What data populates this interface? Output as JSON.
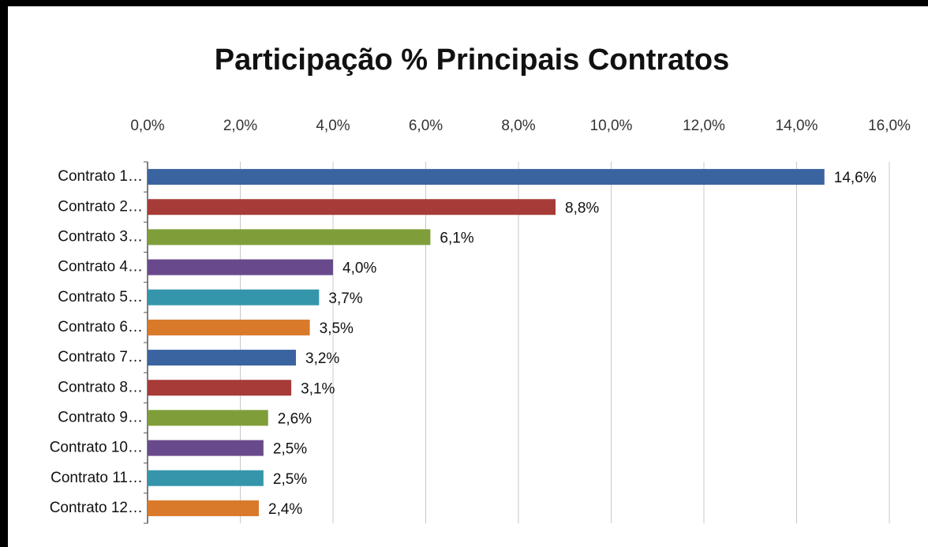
{
  "chart_data": {
    "type": "bar",
    "orientation": "horizontal",
    "title": "Participação % Principais Contratos",
    "categories": [
      "Contrato 1…",
      "Contrato 2…",
      "Contrato 3…",
      "Contrato 4…",
      "Contrato 5…",
      "Contrato 6…",
      "Contrato 7…",
      "Contrato 8…",
      "Contrato 9…",
      "Contrato 10…",
      "Contrato 11…",
      "Contrato 12…"
    ],
    "values": [
      14.6,
      8.8,
      6.1,
      4.0,
      3.7,
      3.5,
      3.2,
      3.1,
      2.6,
      2.5,
      2.5,
      2.4
    ],
    "value_labels": [
      "14,6%",
      "8,8%",
      "6,1%",
      "4,0%",
      "3,7%",
      "3,5%",
      "3,2%",
      "3,1%",
      "2,6%",
      "2,5%",
      "2,5%",
      "2,4%"
    ],
    "colors": [
      "#3a64a0",
      "#a63b38",
      "#7f9e3a",
      "#684a8c",
      "#3596ab",
      "#d97a2a",
      "#3a64a0",
      "#a63b38",
      "#7f9e3a",
      "#684a8c",
      "#3596ab",
      "#d97a2a"
    ],
    "xlim": [
      0,
      16
    ],
    "xticks": [
      {
        "value": 0,
        "label": "0,0%"
      },
      {
        "value": 2,
        "label": "2,0%"
      },
      {
        "value": 4,
        "label": "4,0%"
      },
      {
        "value": 6,
        "label": "6,0%"
      },
      {
        "value": 8,
        "label": "8,0%"
      },
      {
        "value": 10,
        "label": "10,0%"
      },
      {
        "value": 12,
        "label": "12,0%"
      },
      {
        "value": 14,
        "label": "14,0%"
      },
      {
        "value": 16,
        "label": "16,0%"
      }
    ],
    "grid": true
  }
}
